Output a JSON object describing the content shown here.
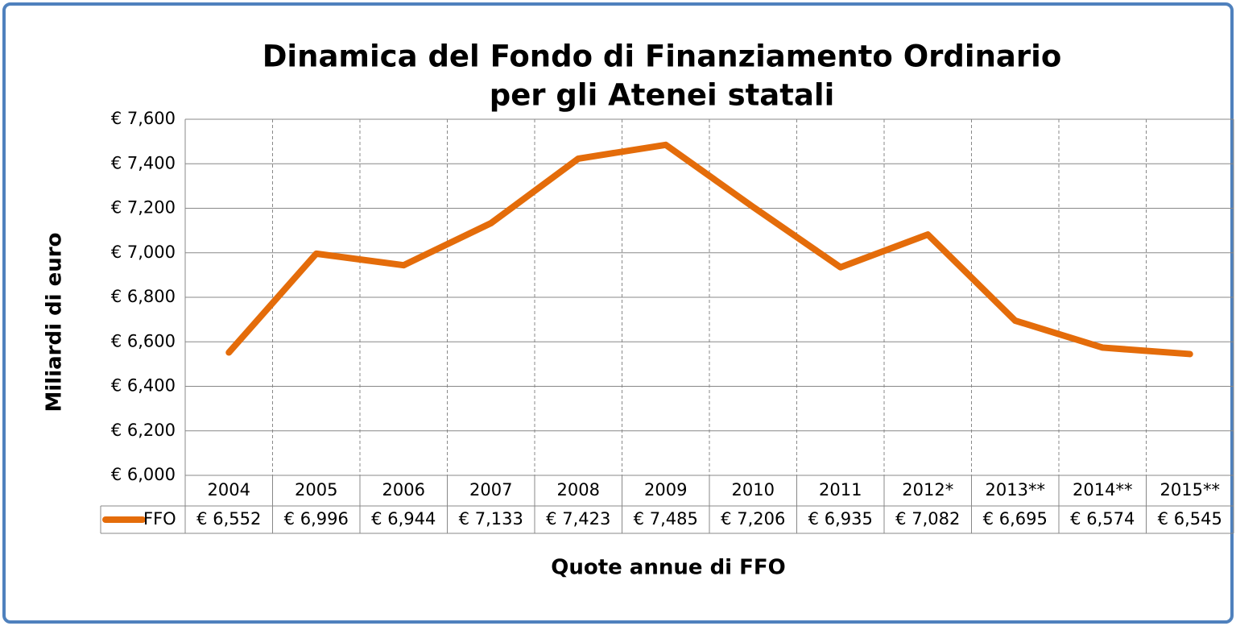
{
  "chart_data": {
    "type": "line",
    "title": [
      "Dinamica del Fondo di Finanziamento Ordinario",
      "per gli Atenei statali"
    ],
    "y_label": "Miliardi di euro",
    "x_label": "Quote annue di FFO",
    "categories": [
      "2004",
      "2005",
      "2006",
      "2007",
      "2008",
      "2009",
      "2010",
      "2011",
      "2012*",
      "2013**",
      "2014**",
      "2015**"
    ],
    "series": [
      {
        "name": "FFO",
        "color": "#e46c0a",
        "values": [
          6552,
          6996,
          6944,
          7133,
          7423,
          7485,
          7206,
          6935,
          7082,
          6695,
          6574,
          6545
        ],
        "value_labels": [
          "€ 6,552",
          "€ 6,996",
          "€ 6,944",
          "€ 7,133",
          "€ 7,423",
          "€ 7,485",
          "€ 7,206",
          "€ 6,935",
          "€ 7,082",
          "€ 6,695",
          "€ 6,574",
          "€ 6,545"
        ]
      }
    ],
    "ylim": [
      6000,
      7600
    ],
    "yticks": [
      {
        "value": 6000,
        "label": "€ 6,000"
      },
      {
        "value": 6200,
        "label": "€ 6,200"
      },
      {
        "value": 6400,
        "label": "€ 6,400"
      },
      {
        "value": 6600,
        "label": "€ 6,600"
      },
      {
        "value": 6800,
        "label": "€ 6,800"
      },
      {
        "value": 7000,
        "label": "€ 7,000"
      },
      {
        "value": 7200,
        "label": "€ 7,200"
      },
      {
        "value": 7400,
        "label": "€ 7,400"
      },
      {
        "value": 7600,
        "label": "€ 7,600"
      }
    ],
    "grid": true
  }
}
